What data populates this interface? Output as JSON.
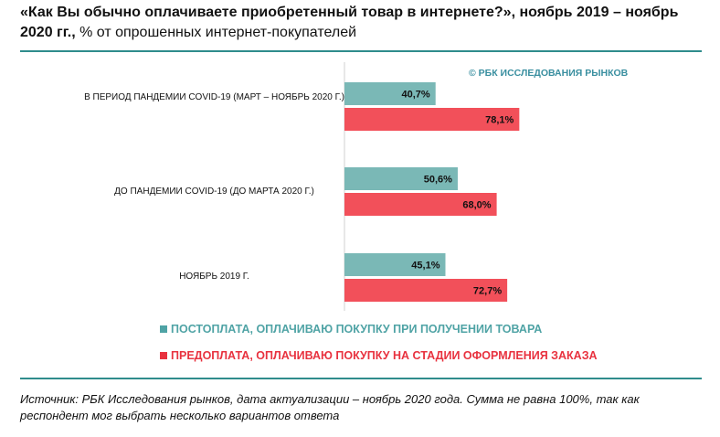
{
  "title": {
    "bold": "«Как Вы обычно оплачиваете приобретенный товар в интернете?», ноябрь 2019 – ноябрь 2020 гг.,",
    "normal": " % от опрошенных интернет-покупателей"
  },
  "copyright": "© РБК ИССЛЕДОВАНИЯ РЫНКОВ",
  "chart_data": {
    "type": "bar",
    "orientation": "horizontal",
    "categories": [
      "В ПЕРИОД ПАНДЕМИИ COVID-19 (МАРТ – НОЯБРЬ 2020 Г.)",
      "ДО ПАНДЕМИИ COVID-19 (ДО МАРТА 2020 Г.)",
      "НОЯБРЬ 2019 Г."
    ],
    "series": [
      {
        "name": "ПОСТОПЛАТА, ОПЛАЧИВАЮ ПОКУПКУ ПРИ ПОЛУЧЕНИИ ТОВАРА",
        "color": "#7ab8b6",
        "values": [
          40.7,
          50.6,
          45.1
        ],
        "labels": [
          "40,7%",
          "50,6%",
          "45,1%"
        ]
      },
      {
        "name": "ПРЕДОПЛАТА, ОПЛАЧИВАЮ ПОКУПКУ НА СТАДИИ ОФОРМЛЕНИЯ ЗАКАЗА",
        "color": "#f2505a",
        "values": [
          78.1,
          68.0,
          72.7
        ],
        "labels": [
          "78,1%",
          "68,0%",
          "72,7%"
        ]
      }
    ],
    "xlim": [
      0,
      100
    ],
    "grid": false,
    "legend_position": "bottom"
  },
  "legend_colors": {
    "post": "#4fa3a5",
    "pre": "#e8323f"
  },
  "source": "Источник: РБК Исследования рынков, дата актуализации – ноябрь 2020 года. Сумма не равна 100%, так как респондент мог выбрать несколько вариантов ответа"
}
